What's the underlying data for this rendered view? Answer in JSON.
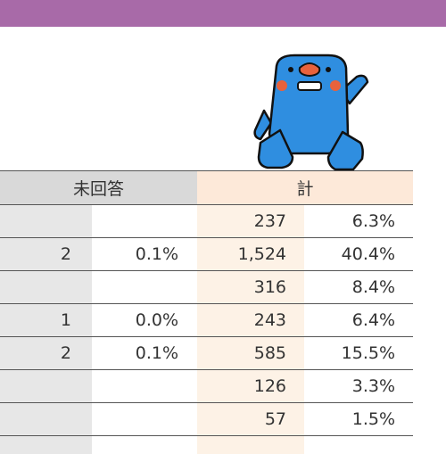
{
  "colors": {
    "header_bar": "#a86aa8",
    "unanswered_header": "#d9d9d9",
    "total_header": "#fde9d9",
    "total_column": "#fdf2e6",
    "mascot_body": "#2f8ee0"
  },
  "mascot": {
    "icon": "blue-bird-mascot-icon"
  },
  "table": {
    "headers": {
      "unanswered": "未回答",
      "total": "計"
    },
    "rows": [
      {
        "count": "",
        "pct": "",
        "total": "237",
        "total_pct": "6.3%"
      },
      {
        "count": "2",
        "pct": "0.1%",
        "total": "1,524",
        "total_pct": "40.4%"
      },
      {
        "count": "",
        "pct": "",
        "total": "316",
        "total_pct": "8.4%"
      },
      {
        "count": "1",
        "pct": "0.0%",
        "total": "243",
        "total_pct": "6.4%"
      },
      {
        "count": "2",
        "pct": "0.1%",
        "total": "585",
        "total_pct": "15.5%"
      },
      {
        "count": "",
        "pct": "",
        "total": "126",
        "total_pct": "3.3%"
      },
      {
        "count": "",
        "pct": "",
        "total": "57",
        "total_pct": "1.5%"
      }
    ]
  }
}
